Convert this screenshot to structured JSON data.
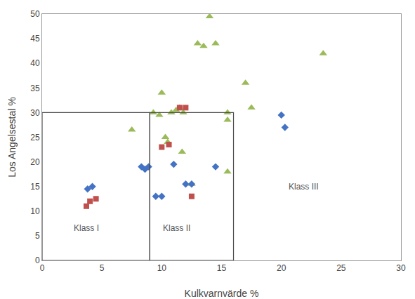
{
  "chart_data": {
    "type": "scatter",
    "xlabel": "Kulkvarnvärde %",
    "ylabel": "Los Angelsestal %",
    "xlim": [
      0,
      30
    ],
    "ylim": [
      0,
      50
    ],
    "xticks": [
      0,
      5,
      10,
      15,
      20,
      25,
      30
    ],
    "yticks": [
      0,
      5,
      10,
      15,
      20,
      25,
      30,
      35,
      40,
      45,
      50
    ],
    "grid": false,
    "series": [
      {
        "color": "#9BBB59",
        "marker": "triangle",
        "x": [
          7.5,
          9.3,
          9.8,
          10.0,
          10.3,
          10.5,
          10.8,
          11.2,
          11.5,
          11.8,
          11.7,
          12.5,
          13.0,
          13.5,
          14.0,
          14.5,
          15.5,
          15.5,
          15.5,
          17.0,
          17.5,
          23.5
        ],
        "values": [
          26.5,
          30.0,
          29.5,
          34.0,
          25.0,
          24.0,
          30.0,
          30.5,
          31.0,
          30.0,
          22.0,
          15.5,
          44.0,
          43.5,
          49.5,
          44.0,
          30.0,
          28.5,
          18.0,
          36.0,
          31.0,
          42.0
        ]
      },
      {
        "color": "#4472C4",
        "marker": "diamond",
        "x": [
          3.8,
          4.2,
          8.3,
          8.6,
          8.9,
          9.5,
          10.0,
          11.0,
          12.0,
          12.5,
          14.5,
          20.0,
          20.3
        ],
        "values": [
          14.5,
          15.0,
          19.0,
          18.5,
          19.0,
          13.0,
          13.0,
          19.5,
          15.5,
          15.5,
          19.0,
          29.5,
          27.0
        ]
      },
      {
        "color": "#C0504D",
        "marker": "square",
        "x": [
          3.7,
          4.0,
          4.5,
          10.0,
          10.6,
          11.5,
          12.0,
          12.5
        ],
        "values": [
          11.0,
          12.0,
          12.5,
          23.0,
          23.5,
          31.0,
          31.0,
          13.0
        ]
      }
    ],
    "rectangles": [
      {
        "x": [
          0,
          9
        ],
        "y": [
          0,
          30
        ],
        "color": "#4D4D4D"
      },
      {
        "x": [
          9,
          16
        ],
        "y": [
          0,
          30
        ],
        "color": "#4D4D4D"
      }
    ],
    "annotations": [
      {
        "text": "Klass I",
        "x": 2.5,
        "y": 6.5
      },
      {
        "text": "Klass II",
        "x": 10.0,
        "y": 6.5
      },
      {
        "text": "Klass III",
        "x": 20.5,
        "y": 15.0
      }
    ]
  }
}
